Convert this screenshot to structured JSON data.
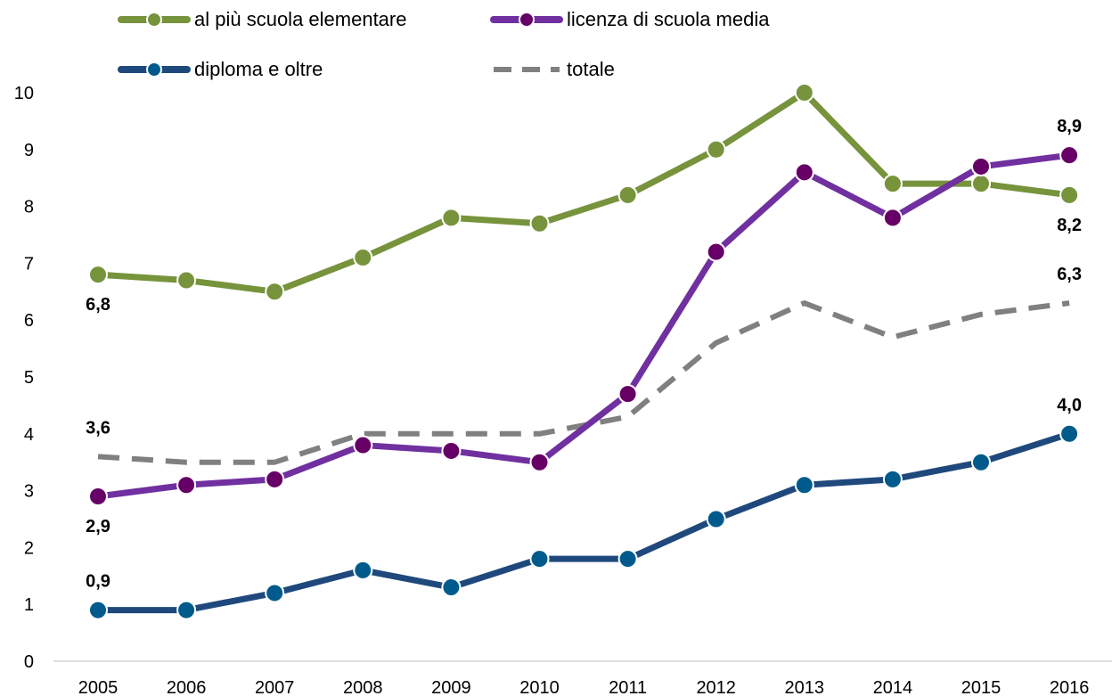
{
  "chart_data": {
    "type": "line",
    "title": "",
    "xlabel": "",
    "ylabel": "",
    "ylim": [
      0,
      10
    ],
    "yticks": [
      "0",
      "1",
      "2",
      "3",
      "4",
      "5",
      "6",
      "7",
      "8",
      "9",
      "10"
    ],
    "categories": [
      "2005",
      "2006",
      "2007",
      "2008",
      "2009",
      "2010",
      "2011",
      "2012",
      "2013",
      "2014",
      "2015",
      "2016"
    ],
    "grid": false,
    "legend_position": "top",
    "series": [
      {
        "name": "al più scuola elementare",
        "color": "#77933c",
        "marker_color": "#77933c",
        "style": "solid",
        "values": [
          6.8,
          6.7,
          6.5,
          7.1,
          7.8,
          7.7,
          8.2,
          9.0,
          10.0,
          8.4,
          8.4,
          8.2
        ],
        "labels": [
          {
            "index": 0,
            "text": "6,8",
            "pos": "below"
          },
          {
            "index": 11,
            "text": "8,2",
            "pos": "below"
          }
        ]
      },
      {
        "name": "licenza di scuola media",
        "color": "#7030a0",
        "marker_color": "#660066",
        "style": "solid",
        "values": [
          2.9,
          3.1,
          3.2,
          3.8,
          3.7,
          3.5,
          4.7,
          7.2,
          8.6,
          7.8,
          8.7,
          8.9
        ],
        "labels": [
          {
            "index": 0,
            "text": "2,9",
            "pos": "below"
          },
          {
            "index": 11,
            "text": "8,9",
            "pos": "above"
          }
        ]
      },
      {
        "name": "diploma e oltre",
        "color": "#1f497d",
        "marker_color": "#005b8c",
        "style": "solid",
        "values": [
          0.9,
          0.9,
          1.2,
          1.6,
          1.3,
          1.8,
          1.8,
          2.5,
          3.1,
          3.2,
          3.5,
          4.0
        ],
        "labels": [
          {
            "index": 0,
            "text": "0,9",
            "pos": "above"
          },
          {
            "index": 11,
            "text": "4,0",
            "pos": "above"
          }
        ]
      },
      {
        "name": "totale",
        "color": "#808080",
        "style": "dashed",
        "values": [
          3.6,
          3.5,
          3.5,
          4.0,
          4.0,
          4.0,
          4.3,
          5.6,
          6.3,
          5.7,
          6.1,
          6.3
        ],
        "labels": [
          {
            "index": 0,
            "text": "3,6",
            "pos": "above"
          },
          {
            "index": 11,
            "text": "6,3",
            "pos": "above"
          }
        ]
      }
    ]
  }
}
